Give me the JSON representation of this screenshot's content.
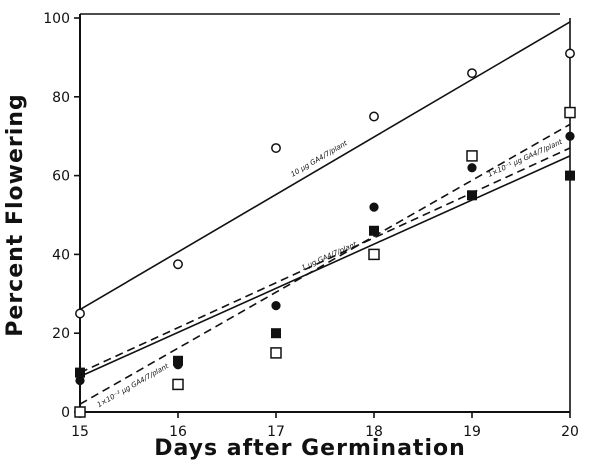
{
  "chart_data": {
    "type": "scatter",
    "title": "",
    "xlabel": "Days after Germination",
    "ylabel": "Percent Flowering",
    "xlim": [
      15,
      20
    ],
    "ylim": [
      0,
      100
    ],
    "x_ticks": [
      "15",
      "16",
      "17",
      "18",
      "19",
      "20"
    ],
    "y_ticks": [
      "0",
      "20",
      "40",
      "60",
      "80",
      "100"
    ],
    "grid": false,
    "series": [
      {
        "name": "10 μg GA4/7/plant",
        "marker": "open-circle",
        "x": [
          15,
          16,
          17,
          18,
          19,
          20
        ],
        "y": [
          25,
          37.5,
          67,
          75,
          86,
          91
        ],
        "fit": {
          "y_at_15": 26,
          "y_at_20": 99,
          "style": "solid"
        }
      },
      {
        "name": "1 μg GA4/7/plant",
        "marker": "filled-circle",
        "x": [
          15,
          16,
          17,
          18,
          19,
          20
        ],
        "y": [
          8,
          12,
          27,
          52,
          62,
          70
        ],
        "fit": {
          "y_at_15": 9,
          "y_at_20": 65,
          "style": "solid"
        }
      },
      {
        "name": "1 × 10⁻¹ μg GA4/7/plant",
        "marker": "filled-square",
        "x": [
          15,
          16,
          17,
          18,
          19,
          20
        ],
        "y": [
          10,
          13,
          20,
          46,
          55,
          60
        ],
        "fit": {
          "y_at_15": 10,
          "y_at_20": 67,
          "style": "dashed"
        }
      },
      {
        "name": "1 × 10⁻² μg GA4/7/plant",
        "marker": "open-square",
        "x": [
          15,
          16,
          17,
          18,
          19,
          20
        ],
        "y": [
          0,
          7,
          15,
          40,
          65,
          76
        ],
        "fit": {
          "y_at_15": 2,
          "y_at_20": 73,
          "style": "dashed"
        }
      }
    ],
    "line_labels": [
      {
        "text": "10 μg GA4/7/plant",
        "series": 0
      },
      {
        "text": "1 μg GA4/7/plant",
        "series": 1
      },
      {
        "text": "1×10⁻¹ μg GA4/7/plant",
        "series": 2
      },
      {
        "text": "1×10⁻² μg GA4/7/plant",
        "series": 3
      }
    ]
  },
  "colors": {
    "ink": "#111111",
    "background": "#ffffff"
  }
}
